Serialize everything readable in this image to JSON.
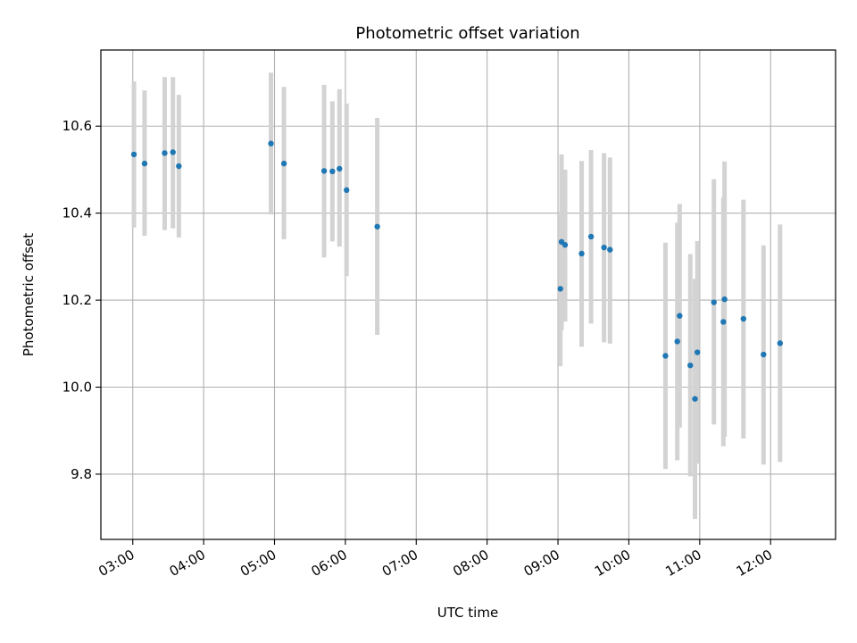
{
  "chart_data": {
    "type": "scatter",
    "title": "Photometric offset variation",
    "xlabel": "UTC time",
    "ylabel": "Photometric offset",
    "xlim": [
      "02:33",
      "12:55"
    ],
    "ylim": [
      9.65,
      10.775
    ],
    "grid": true,
    "x_ticks": [
      "03:00",
      "04:00",
      "05:00",
      "06:00",
      "07:00",
      "08:00",
      "09:00",
      "10:00",
      "11:00",
      "12:00"
    ],
    "y_ticks": [
      9.8,
      10.0,
      10.2,
      10.4,
      10.6
    ],
    "marker_color": "#1f77b4",
    "errorbar_color": "#d3d3d3",
    "points": [
      {
        "x": "03:01",
        "y": 10.535,
        "ylo": 10.367,
        "yhi": 10.703
      },
      {
        "x": "03:10",
        "y": 10.514,
        "ylo": 10.348,
        "yhi": 10.682
      },
      {
        "x": "03:27",
        "y": 10.538,
        "ylo": 10.361,
        "yhi": 10.713
      },
      {
        "x": "03:34",
        "y": 10.54,
        "ylo": 10.365,
        "yhi": 10.713
      },
      {
        "x": "03:39",
        "y": 10.508,
        "ylo": 10.344,
        "yhi": 10.672
      },
      {
        "x": "04:57",
        "y": 10.56,
        "ylo": 10.397,
        "yhi": 10.723
      },
      {
        "x": "05:08",
        "y": 10.514,
        "ylo": 10.34,
        "yhi": 10.69
      },
      {
        "x": "05:42",
        "y": 10.497,
        "ylo": 10.298,
        "yhi": 10.695
      },
      {
        "x": "05:49",
        "y": 10.496,
        "ylo": 10.335,
        "yhi": 10.657
      },
      {
        "x": "05:55",
        "y": 10.502,
        "ylo": 10.323,
        "yhi": 10.685
      },
      {
        "x": "06:01",
        "y": 10.453,
        "ylo": 10.255,
        "yhi": 10.652
      },
      {
        "x": "06:27",
        "y": 10.369,
        "ylo": 10.12,
        "yhi": 10.619
      },
      {
        "x": "09:02",
        "y": 10.226,
        "ylo": 10.048,
        "yhi": 10.404
      },
      {
        "x": "09:03",
        "y": 10.334,
        "ylo": 10.131,
        "yhi": 10.535
      },
      {
        "x": "09:06",
        "y": 10.327,
        "ylo": 10.151,
        "yhi": 10.5
      },
      {
        "x": "09:20",
        "y": 10.307,
        "ylo": 10.093,
        "yhi": 10.52
      },
      {
        "x": "09:28",
        "y": 10.346,
        "ylo": 10.146,
        "yhi": 10.545
      },
      {
        "x": "09:39",
        "y": 10.321,
        "ylo": 10.103,
        "yhi": 10.538
      },
      {
        "x": "09:44",
        "y": 10.316,
        "ylo": 10.1,
        "yhi": 10.528
      },
      {
        "x": "10:31",
        "y": 10.072,
        "ylo": 9.812,
        "yhi": 10.332
      },
      {
        "x": "10:41",
        "y": 10.105,
        "ylo": 9.832,
        "yhi": 10.378
      },
      {
        "x": "10:43",
        "y": 10.164,
        "ylo": 9.907,
        "yhi": 10.421
      },
      {
        "x": "10:52",
        "y": 10.05,
        "ylo": 9.795,
        "yhi": 10.306
      },
      {
        "x": "10:56",
        "y": 9.973,
        "ylo": 9.697,
        "yhi": 10.249
      },
      {
        "x": "10:58",
        "y": 10.08,
        "ylo": 9.824,
        "yhi": 10.336
      },
      {
        "x": "11:12",
        "y": 10.195,
        "ylo": 9.914,
        "yhi": 10.478
      },
      {
        "x": "11:20",
        "y": 10.15,
        "ylo": 9.864,
        "yhi": 10.436
      },
      {
        "x": "11:21",
        "y": 10.202,
        "ylo": 9.886,
        "yhi": 10.519
      },
      {
        "x": "11:37",
        "y": 10.157,
        "ylo": 9.882,
        "yhi": 10.431
      },
      {
        "x": "11:54",
        "y": 10.075,
        "ylo": 9.822,
        "yhi": 10.326
      },
      {
        "x": "12:08",
        "y": 10.101,
        "ylo": 9.828,
        "yhi": 10.374
      }
    ]
  }
}
